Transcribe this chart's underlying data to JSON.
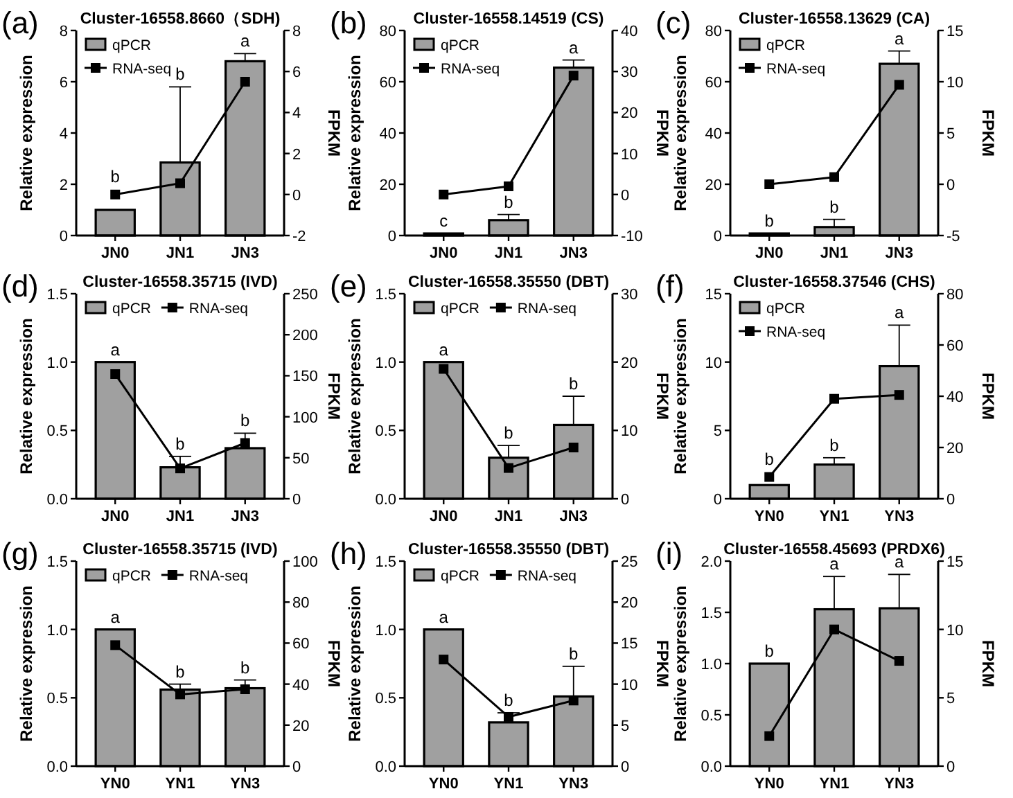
{
  "chart_data": [
    {
      "type": "bar",
      "title": "Cluster-16558.8660（SDH)",
      "categories": [
        "JN0",
        "JN1",
        "JN3"
      ],
      "ylabel": "Relative expression",
      "y2label": "FPKM",
      "ylim": [
        0,
        8
      ],
      "yticks": [
        0,
        2,
        4,
        6,
        8
      ],
      "y2lim": [
        -2,
        8
      ],
      "y2ticks": [
        -2,
        0,
        2,
        4,
        6,
        8
      ],
      "legend": "top left",
      "marker": "square",
      "series": [
        {
          "name": "qPCR",
          "color": "#a0a0a0",
          "values": [
            1.0,
            2.85,
            6.8
          ],
          "errors": [
            null,
            [
              2.85,
              5.8
            ],
            [
              6.8,
              7.1
            ]
          ]
        },
        {
          "name": "RNA-seq",
          "type": "line",
          "axis": "y2",
          "color": "#000000",
          "values": [
            0,
            0.55,
            5.5
          ]
        }
      ],
      "annotations": [
        "(a)",
        "b",
        "b",
        "a"
      ]
    },
    {
      "type": "bar",
      "title": "Cluster-16558.14519 (CS)",
      "categories": [
        "JN0",
        "JN1",
        "JN3"
      ],
      "ylabel": "Relative expression",
      "y2label": "FPKM",
      "ylim": [
        0,
        80
      ],
      "yticks": [
        0,
        20,
        40,
        60,
        80
      ],
      "y2lim": [
        -10,
        40
      ],
      "y2ticks": [
        -10,
        0,
        10,
        20,
        30,
        40
      ],
      "legend": "top left",
      "marker": "square",
      "series": [
        {
          "name": "qPCR",
          "color": "#a0a0a0",
          "values": [
            0.8,
            6,
            65.5
          ],
          "errors": [
            null,
            [
              6,
              8.2
            ],
            [
              65.5,
              68.5
            ]
          ]
        },
        {
          "name": "RNA-seq",
          "type": "line",
          "axis": "y2",
          "color": "#000000",
          "values": [
            0,
            2,
            29
          ]
        }
      ],
      "annotations": [
        "(b)",
        "c",
        "b",
        "a"
      ]
    },
    {
      "type": "bar",
      "title": "Cluster-16558.13629 (CA)",
      "categories": [
        "JN0",
        "JN1",
        "JN3"
      ],
      "ylabel": "Relative expression",
      "y2label": "FPKM",
      "ylim": [
        0,
        80
      ],
      "yticks": [
        0,
        20,
        40,
        60,
        80
      ],
      "y2lim": [
        -5,
        15
      ],
      "y2ticks": [
        -5,
        0,
        5,
        10,
        15
      ],
      "legend": "top left",
      "marker": "square",
      "series": [
        {
          "name": "qPCR",
          "color": "#a0a0a0",
          "values": [
            0.8,
            3.3,
            67
          ],
          "errors": [
            null,
            [
              3.3,
              6.3
            ],
            [
              67,
              72
            ]
          ]
        },
        {
          "name": "RNA-seq",
          "type": "line",
          "axis": "y2",
          "color": "#000000",
          "values": [
            0,
            0.7,
            9.7
          ]
        }
      ],
      "annotations": [
        "(c)",
        "b",
        "b",
        "a"
      ]
    },
    {
      "type": "bar",
      "title": "Cluster-16558.35715 (IVD)",
      "categories": [
        "JN0",
        "JN1",
        "JN3"
      ],
      "ylabel": "Relative expression",
      "y2label": "FPKM",
      "ylim": [
        0,
        1.5
      ],
      "yticks": [
        {
          "value": 0,
          "label": "0.0"
        },
        {
          "value": 0.5,
          "label": "0.5"
        },
        {
          "value": 1.0,
          "label": "1.0"
        },
        {
          "value": 1.5,
          "label": "1.5"
        }
      ],
      "y2lim": [
        0,
        250
      ],
      "y2ticks": [
        0,
        50,
        100,
        150,
        200,
        250
      ],
      "legend": "top left",
      "marker": "square",
      "series": [
        {
          "name": "qPCR",
          "color": "#a0a0a0",
          "values": [
            1.0,
            0.23,
            0.37
          ],
          "errors": [
            null,
            [
              0.23,
              0.31
            ],
            [
              0.37,
              0.48
            ]
          ]
        },
        {
          "name": "RNA-seq",
          "type": "line",
          "axis": "y2",
          "color": "#000000",
          "values": [
            152,
            37,
            68
          ]
        }
      ],
      "annotations": [
        "(d)",
        "a",
        "b",
        "b"
      ]
    },
    {
      "type": "bar",
      "title": "Cluster-16558.35550 (DBT)",
      "categories": [
        "JN0",
        "JN1",
        "JN3"
      ],
      "ylabel": "Relative expression",
      "y2label": "FPKM",
      "ylim": [
        0,
        1.5
      ],
      "yticks": [
        {
          "value": 0,
          "label": "0.0"
        },
        {
          "value": 0.5,
          "label": "0.5"
        },
        {
          "value": 1.0,
          "label": "1.0"
        },
        {
          "value": 1.5,
          "label": "1.5"
        }
      ],
      "y2lim": [
        0,
        30
      ],
      "y2ticks": [
        0,
        10,
        20,
        30
      ],
      "legend": "top left",
      "marker": "square",
      "series": [
        {
          "name": "qPCR",
          "color": "#a0a0a0",
          "values": [
            1.0,
            0.3,
            0.54
          ],
          "errors": [
            null,
            [
              0.3,
              0.39
            ],
            [
              0.54,
              0.75
            ]
          ]
        },
        {
          "name": "RNA-seq",
          "type": "line",
          "axis": "y2",
          "color": "#000000",
          "values": [
            19,
            4.5,
            7.5
          ]
        }
      ],
      "annotations": [
        "(e)",
        "a",
        "b",
        "b"
      ]
    },
    {
      "type": "bar",
      "title": "Cluster-16558.37546 (CHS)",
      "categories": [
        "YN0",
        "YN1",
        "YN3"
      ],
      "ylabel": "Relative expression",
      "y2label": "FPKM",
      "ylim": [
        0,
        15
      ],
      "yticks": [
        0,
        5,
        10,
        15
      ],
      "y2lim": [
        0,
        80
      ],
      "y2ticks": [
        0,
        20,
        40,
        60,
        80
      ],
      "legend": "top left",
      "marker": "square",
      "series": [
        {
          "name": "qPCR",
          "color": "#a0a0a0",
          "values": [
            1.0,
            2.5,
            9.7
          ],
          "errors": [
            null,
            [
              2.5,
              3.0
            ],
            [
              9.7,
              12.7
            ]
          ]
        },
        {
          "name": "RNA-seq",
          "type": "line",
          "axis": "y2",
          "color": "#000000",
          "values": [
            8.5,
            39,
            40.5
          ]
        }
      ],
      "annotations": [
        "(f)",
        "b",
        "b",
        "a"
      ]
    },
    {
      "type": "bar",
      "title": "Cluster-16558.35715 (IVD)",
      "categories": [
        "YN0",
        "YN1",
        "YN3"
      ],
      "ylabel": "Relative expression",
      "y2label": "FPKM",
      "ylim": [
        0,
        1.5
      ],
      "yticks": [
        {
          "value": 0,
          "label": "0.0"
        },
        {
          "value": 0.5,
          "label": "0.5"
        },
        {
          "value": 1.0,
          "label": "1.0"
        },
        {
          "value": 1.5,
          "label": "1.5"
        }
      ],
      "y2lim": [
        0,
        100
      ],
      "y2ticks": [
        0,
        20,
        40,
        60,
        80,
        100
      ],
      "legend": "top left",
      "marker": "square",
      "series": [
        {
          "name": "qPCR",
          "color": "#a0a0a0",
          "values": [
            1.0,
            0.56,
            0.57
          ],
          "errors": [
            null,
            [
              0.56,
              0.6
            ],
            [
              0.57,
              0.63
            ]
          ]
        },
        {
          "name": "RNA-seq",
          "type": "line",
          "axis": "y2",
          "color": "#000000",
          "values": [
            59,
            35,
            37.5
          ]
        }
      ],
      "annotations": [
        "(g)",
        "a",
        "b",
        "b"
      ]
    },
    {
      "type": "bar",
      "title": "Cluster-16558.35550 (DBT)",
      "categories": [
        "YN0",
        "YN1",
        "YN3"
      ],
      "ylabel": "Relative expression",
      "y2label": "FPKM",
      "ylim": [
        0,
        1.5
      ],
      "yticks": [
        {
          "value": 0,
          "label": "0.0"
        },
        {
          "value": 0.5,
          "label": "0.5"
        },
        {
          "value": 1.0,
          "label": "1.0"
        },
        {
          "value": 1.5,
          "label": "1.5"
        }
      ],
      "y2lim": [
        0,
        25
      ],
      "y2ticks": [
        0,
        5,
        10,
        15,
        20,
        25
      ],
      "legend": "top left",
      "marker": "square",
      "series": [
        {
          "name": "qPCR",
          "color": "#a0a0a0",
          "values": [
            1.0,
            0.32,
            0.51
          ],
          "errors": [
            null,
            [
              0.32,
              0.39
            ],
            [
              0.51,
              0.73
            ]
          ]
        },
        {
          "name": "RNA-seq",
          "type": "line",
          "axis": "y2",
          "color": "#000000",
          "values": [
            13,
            6,
            8
          ]
        }
      ],
      "annotations": [
        "(h)",
        "a",
        "b",
        "b"
      ]
    },
    {
      "type": "bar",
      "title": "Cluster-16558.45693 (PRDX6)",
      "categories": [
        "YN0",
        "YN1",
        "YN3"
      ],
      "ylabel": "Relative expression",
      "y2label": "FPKM",
      "ylim": [
        0,
        2.0
      ],
      "yticks": [
        {
          "value": 0,
          "label": "0.0"
        },
        {
          "value": 0.5,
          "label": "0.5"
        },
        {
          "value": 1.0,
          "label": "1.0"
        },
        {
          "value": 1.5,
          "label": "1.5"
        },
        {
          "value": 2.0,
          "label": "2.0"
        }
      ],
      "y2lim": [
        0,
        15
      ],
      "y2ticks": [
        0,
        5,
        10,
        15
      ],
      "marker": "square",
      "series": [
        {
          "color": "#a0a0a0",
          "values": [
            1.0,
            1.53,
            1.54
          ],
          "errors": [
            null,
            [
              1.53,
              1.85
            ],
            [
              1.54,
              1.87
            ]
          ]
        },
        {
          "type": "line",
          "axis": "y2",
          "color": "#000000",
          "values": [
            2.2,
            10,
            7.7
          ]
        }
      ],
      "annotations": [
        "(i)",
        "b",
        "a",
        "a"
      ]
    }
  ]
}
